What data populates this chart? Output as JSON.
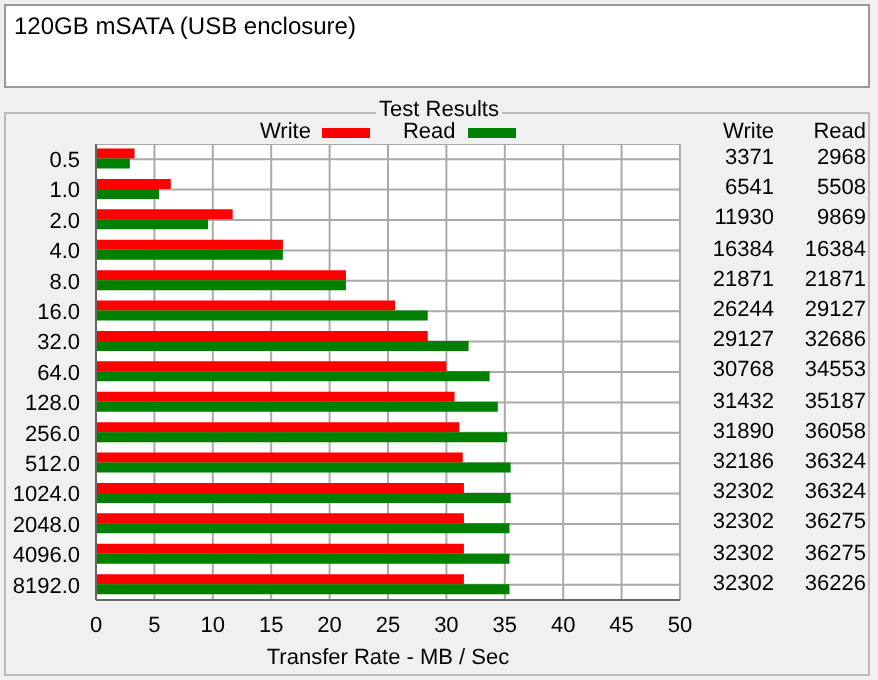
{
  "chart_data": [
    {
      "type": "bar",
      "orientation": "horizontal",
      "title": "120GB mSATA (USB enclosure)",
      "subtitle": "Test Results",
      "xlabel": "Transfer Rate - MB / Sec",
      "categories": [
        "0.5",
        "1.0",
        "2.0",
        "4.0",
        "8.0",
        "16.0",
        "32.0",
        "64.0",
        "128.0",
        "256.0",
        "512.0",
        "1024.0",
        "2048.0",
        "4096.0",
        "8192.0"
      ],
      "series": [
        {
          "name": "Write",
          "color": "#ff0000",
          "values": [
            3.3,
            6.4,
            11.7,
            16.0,
            21.4,
            25.6,
            28.4,
            30.0,
            30.7,
            31.1,
            31.4,
            31.5,
            31.5,
            31.5,
            31.5
          ]
        },
        {
          "name": "Read",
          "color": "#008000",
          "values": [
            2.9,
            5.4,
            9.6,
            16.0,
            21.4,
            28.4,
            31.9,
            33.7,
            34.4,
            35.2,
            35.5,
            35.5,
            35.4,
            35.4,
            35.4
          ]
        }
      ],
      "xlim": [
        0,
        50
      ],
      "xticks": [
        0,
        5,
        10,
        15,
        20,
        25,
        30,
        35,
        40,
        45,
        50
      ],
      "grid": true,
      "legend": "top"
    },
    {
      "type": "other",
      "annotations": [
        "Write",
        "Read",
        "3371",
        "2968",
        "6541",
        "5508",
        "11930",
        "9869",
        "16384",
        "16384",
        "21871",
        "21871",
        "26244",
        "29127",
        "29127",
        "32686",
        "30768",
        "34553",
        "31432",
        "35187",
        "31890",
        "36058",
        "32186",
        "36324",
        "32302",
        "36324",
        "32302",
        "36275",
        "32302",
        "36275",
        "32302",
        "36226"
      ]
    }
  ]
}
